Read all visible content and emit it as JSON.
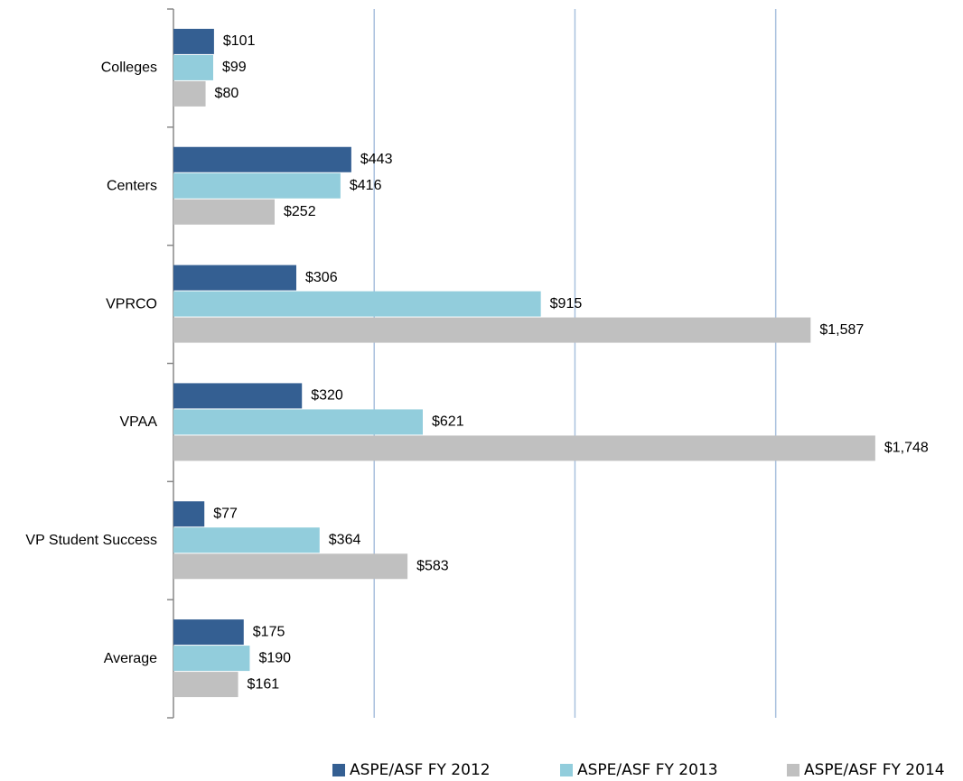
{
  "chart_data": {
    "type": "hbar",
    "categories": [
      "Colleges",
      "Centers",
      "VPRCO",
      "VPAA",
      "VP Student Success",
      "Average"
    ],
    "series": [
      {
        "name": "ASPE/ASF FY 2012",
        "color": "#345f92",
        "values": [
          101,
          443,
          306,
          320,
          77,
          175
        ],
        "value_labels": [
          "$101",
          "$443",
          "$306",
          "$320",
          "$77",
          "$175"
        ]
      },
      {
        "name": "ASPE/ASF FY 2013",
        "color": "#92cddc",
        "values": [
          99,
          416,
          915,
          621,
          364,
          190
        ],
        "value_labels": [
          "$99",
          "$416",
          "$915",
          "$621",
          "$364",
          "$190"
        ]
      },
      {
        "name": "ASPE/ASF FY 2014",
        "color": "#c0c0c0",
        "values": [
          80,
          252,
          1587,
          1748,
          583,
          161
        ],
        "value_labels": [
          "$80",
          "$252",
          "$1,587",
          "$1,748",
          "$583",
          "$161"
        ]
      }
    ],
    "xlim": [
      0,
      1800
    ],
    "xticks": [
      500,
      1000,
      1500
    ],
    "grid": true,
    "legend": "bottom"
  }
}
